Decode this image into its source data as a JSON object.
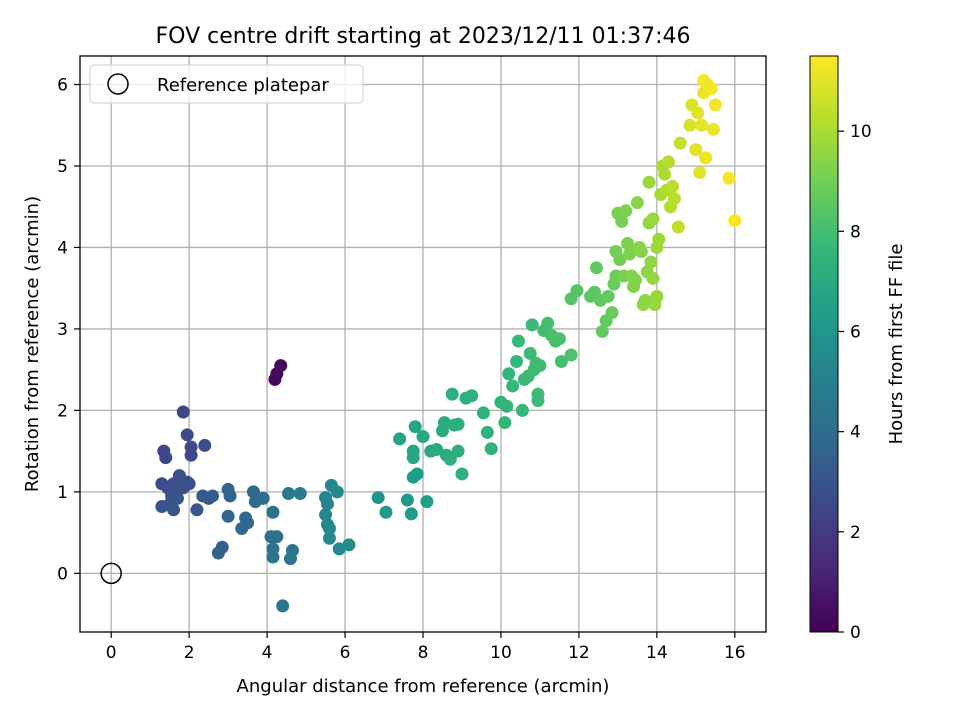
{
  "chart_data": {
    "type": "scatter",
    "title": "FOV centre drift starting at 2023/12/11 01:37:46",
    "xlabel": "Angular distance from reference (arcmin)",
    "ylabel": "Rotation from reference (arcmin)",
    "xlim": [
      -0.8,
      16.8
    ],
    "ylim": [
      -0.72,
      6.35
    ],
    "xticks": [
      0,
      2,
      4,
      6,
      8,
      10,
      12,
      14,
      16
    ],
    "yticks": [
      0,
      1,
      2,
      3,
      4,
      5,
      6
    ],
    "grid": true,
    "legend": {
      "placement": "top-left",
      "entries": [
        "Reference platepar"
      ]
    },
    "reference_point": {
      "x": 0,
      "y": 0,
      "label": "Reference platepar"
    },
    "colorbar": {
      "label": "Hours from first FF file",
      "colormap": "viridis",
      "range": [
        0,
        11.5
      ],
      "ticks": [
        0,
        2,
        4,
        6,
        8,
        10
      ]
    },
    "colors": {
      "axis": "#000000",
      "grid": "#b0b0b0",
      "viridis_stops": [
        "#440154",
        "#482878",
        "#3e4989",
        "#31688e",
        "#26828e",
        "#1f9e89",
        "#35b779",
        "#6ece58",
        "#b5de2b",
        "#fde725"
      ]
    },
    "series": [
      {
        "points": [
          [
            4.2,
            2.38,
            0.2
          ],
          [
            4.25,
            2.45,
            0.25
          ],
          [
            4.35,
            2.55,
            0.3
          ],
          [
            1.85,
            1.98,
            2.5
          ],
          [
            1.95,
            1.7,
            2.6
          ],
          [
            2.05,
            1.55,
            2.6
          ],
          [
            2.05,
            1.45,
            2.5
          ],
          [
            2.4,
            1.57,
            2.7
          ],
          [
            1.35,
            1.5,
            2.4
          ],
          [
            1.4,
            1.42,
            2.5
          ],
          [
            1.3,
            1.1,
            2.6
          ],
          [
            1.45,
            1.05,
            2.7
          ],
          [
            1.6,
            1.1,
            2.8
          ],
          [
            1.75,
            1.2,
            2.8
          ],
          [
            1.85,
            1.05,
            2.9
          ],
          [
            1.95,
            1.12,
            2.9
          ],
          [
            2.0,
            1.1,
            2.8
          ],
          [
            1.55,
            0.95,
            2.9
          ],
          [
            1.7,
            0.92,
            3.0
          ],
          [
            1.3,
            0.82,
            3.0
          ],
          [
            1.5,
            0.85,
            3.0
          ],
          [
            1.6,
            0.78,
            3.1
          ],
          [
            1.7,
            1.05,
            2.9
          ],
          [
            2.2,
            0.78,
            3.1
          ],
          [
            2.35,
            0.95,
            3.2
          ],
          [
            2.5,
            0.92,
            3.2
          ],
          [
            2.6,
            0.95,
            3.3
          ],
          [
            3.0,
            1.03,
            3.6
          ],
          [
            3.05,
            0.95,
            3.6
          ],
          [
            3.0,
            0.7,
            3.7
          ],
          [
            3.45,
            0.68,
            3.8
          ],
          [
            3.5,
            0.62,
            3.9
          ],
          [
            3.35,
            0.55,
            3.8
          ],
          [
            3.7,
            0.88,
            4.0
          ],
          [
            3.65,
            1.0,
            3.9
          ],
          [
            3.9,
            0.92,
            4.1
          ],
          [
            2.75,
            0.25,
            3.6
          ],
          [
            2.85,
            0.32,
            3.6
          ],
          [
            4.1,
            0.45,
            4.3
          ],
          [
            4.25,
            0.45,
            4.3
          ],
          [
            4.15,
            0.75,
            4.2
          ],
          [
            4.15,
            0.3,
            4.4
          ],
          [
            4.15,
            0.2,
            4.4
          ],
          [
            4.6,
            0.18,
            4.5
          ],
          [
            4.65,
            0.28,
            4.5
          ],
          [
            4.4,
            -0.4,
            4.5
          ],
          [
            4.55,
            0.98,
            4.6
          ],
          [
            4.85,
            0.98,
            4.8
          ],
          [
            5.5,
            0.93,
            5.2
          ],
          [
            5.55,
            0.85,
            5.2
          ],
          [
            5.5,
            0.72,
            5.3
          ],
          [
            5.55,
            0.6,
            5.3
          ],
          [
            5.6,
            0.55,
            5.4
          ],
          [
            5.6,
            0.43,
            5.4
          ],
          [
            5.85,
            0.3,
            5.5
          ],
          [
            6.1,
            0.35,
            5.6
          ],
          [
            5.65,
            1.08,
            5.3
          ],
          [
            5.8,
            1.0,
            5.4
          ],
          [
            6.85,
            0.93,
            6.0
          ],
          [
            7.05,
            0.75,
            6.1
          ],
          [
            7.6,
            0.9,
            6.3
          ],
          [
            7.7,
            0.73,
            6.3
          ],
          [
            7.75,
            1.18,
            6.4
          ],
          [
            7.85,
            1.22,
            6.4
          ],
          [
            8.1,
            0.88,
            6.5
          ],
          [
            7.4,
            1.65,
            6.7
          ],
          [
            7.75,
            1.5,
            6.8
          ],
          [
            7.75,
            1.42,
            6.8
          ],
          [
            7.8,
            1.8,
            6.8
          ],
          [
            8.0,
            1.68,
            6.9
          ],
          [
            8.2,
            1.5,
            7.0
          ],
          [
            8.35,
            1.52,
            7.0
          ],
          [
            8.5,
            1.75,
            7.1
          ],
          [
            8.55,
            1.85,
            7.1
          ],
          [
            8.6,
            1.45,
            7.1
          ],
          [
            8.7,
            1.4,
            7.2
          ],
          [
            8.75,
            2.2,
            7.2
          ],
          [
            8.8,
            1.82,
            7.2
          ],
          [
            8.9,
            1.83,
            7.2
          ],
          [
            8.9,
            1.5,
            7.2
          ],
          [
            9.0,
            1.22,
            7.3
          ],
          [
            9.1,
            2.15,
            7.3
          ],
          [
            9.25,
            2.18,
            7.3
          ],
          [
            9.55,
            1.97,
            7.4
          ],
          [
            9.65,
            1.73,
            7.4
          ],
          [
            9.75,
            1.53,
            7.4
          ],
          [
            10.0,
            2.1,
            7.5
          ],
          [
            10.1,
            1.85,
            7.5
          ],
          [
            10.15,
            2.05,
            7.5
          ],
          [
            10.2,
            2.45,
            7.6
          ],
          [
            10.3,
            2.3,
            7.6
          ],
          [
            10.4,
            2.6,
            7.6
          ],
          [
            10.45,
            2.85,
            7.7
          ],
          [
            10.55,
            2.0,
            7.7
          ],
          [
            10.6,
            2.38,
            7.7
          ],
          [
            10.7,
            2.42,
            7.8
          ],
          [
            10.75,
            2.7,
            7.8
          ],
          [
            10.8,
            3.05,
            7.8
          ],
          [
            10.85,
            2.5,
            7.9
          ],
          [
            10.9,
            2.58,
            7.9
          ],
          [
            10.95,
            2.2,
            7.9
          ],
          [
            10.95,
            2.12,
            7.8
          ],
          [
            11.0,
            2.55,
            7.9
          ],
          [
            11.1,
            2.98,
            8.0
          ],
          [
            11.2,
            3.07,
            8.0
          ],
          [
            11.3,
            2.92,
            8.1
          ],
          [
            11.4,
            2.85,
            8.1
          ],
          [
            11.5,
            2.88,
            8.1
          ],
          [
            11.55,
            2.6,
            8.1
          ],
          [
            11.8,
            2.68,
            8.2
          ],
          [
            11.8,
            3.37,
            8.4
          ],
          [
            11.95,
            3.47,
            8.4
          ],
          [
            12.3,
            3.4,
            8.5
          ],
          [
            12.4,
            3.45,
            8.5
          ],
          [
            12.45,
            3.75,
            8.6
          ],
          [
            12.55,
            3.35,
            8.6
          ],
          [
            12.6,
            2.97,
            8.7
          ],
          [
            12.7,
            3.1,
            8.7
          ],
          [
            12.75,
            3.4,
            8.7
          ],
          [
            12.85,
            3.2,
            8.8
          ],
          [
            12.9,
            3.55,
            8.8
          ],
          [
            12.95,
            3.65,
            8.9
          ],
          [
            12.95,
            3.95,
            9.0
          ],
          [
            13.0,
            4.42,
            9.1
          ],
          [
            13.05,
            3.85,
            9.0
          ],
          [
            13.1,
            4.32,
            9.1
          ],
          [
            13.15,
            3.65,
            9.1
          ],
          [
            13.2,
            4.45,
            9.2
          ],
          [
            13.25,
            4.05,
            9.2
          ],
          [
            13.3,
            3.92,
            9.2
          ],
          [
            13.35,
            3.65,
            9.3
          ],
          [
            13.4,
            3.52,
            9.3
          ],
          [
            13.45,
            3.6,
            9.3
          ],
          [
            13.5,
            4.55,
            9.4
          ],
          [
            13.55,
            4.0,
            9.4
          ],
          [
            13.6,
            3.95,
            9.4
          ],
          [
            13.65,
            3.3,
            9.5
          ],
          [
            13.7,
            3.35,
            9.5
          ],
          [
            13.75,
            3.7,
            9.5
          ],
          [
            13.8,
            4.3,
            9.6
          ],
          [
            13.8,
            4.8,
            9.7
          ],
          [
            13.85,
            3.82,
            9.6
          ],
          [
            13.9,
            4.35,
            9.7
          ],
          [
            13.9,
            3.62,
            9.6
          ],
          [
            13.95,
            3.3,
            9.7
          ],
          [
            14.0,
            3.4,
            9.7
          ],
          [
            14.0,
            4.0,
            9.8
          ],
          [
            14.05,
            4.1,
            9.8
          ],
          [
            14.1,
            4.65,
            9.9
          ],
          [
            14.15,
            5.0,
            10.0
          ],
          [
            14.2,
            4.9,
            10.0
          ],
          [
            14.25,
            4.7,
            10.1
          ],
          [
            14.3,
            5.05,
            10.2
          ],
          [
            14.35,
            4.5,
            10.2
          ],
          [
            14.4,
            4.75,
            10.3
          ],
          [
            14.45,
            4.6,
            10.3
          ],
          [
            14.55,
            4.25,
            10.4
          ],
          [
            14.6,
            5.28,
            10.5
          ],
          [
            14.85,
            5.5,
            10.8
          ],
          [
            14.9,
            5.75,
            10.9
          ],
          [
            15.0,
            5.2,
            11.0
          ],
          [
            15.05,
            5.65,
            11.0
          ],
          [
            15.1,
            4.92,
            11.0
          ],
          [
            15.15,
            5.5,
            11.1
          ],
          [
            15.2,
            5.9,
            11.2
          ],
          [
            15.2,
            6.05,
            11.3
          ],
          [
            15.25,
            5.1,
            11.2
          ],
          [
            15.3,
            6.0,
            11.3
          ],
          [
            15.4,
            5.95,
            11.3
          ],
          [
            15.45,
            5.45,
            11.2
          ],
          [
            15.5,
            5.75,
            11.3
          ],
          [
            15.85,
            4.85,
            11.4
          ],
          [
            16.0,
            4.33,
            11.4
          ]
        ]
      }
    ]
  }
}
